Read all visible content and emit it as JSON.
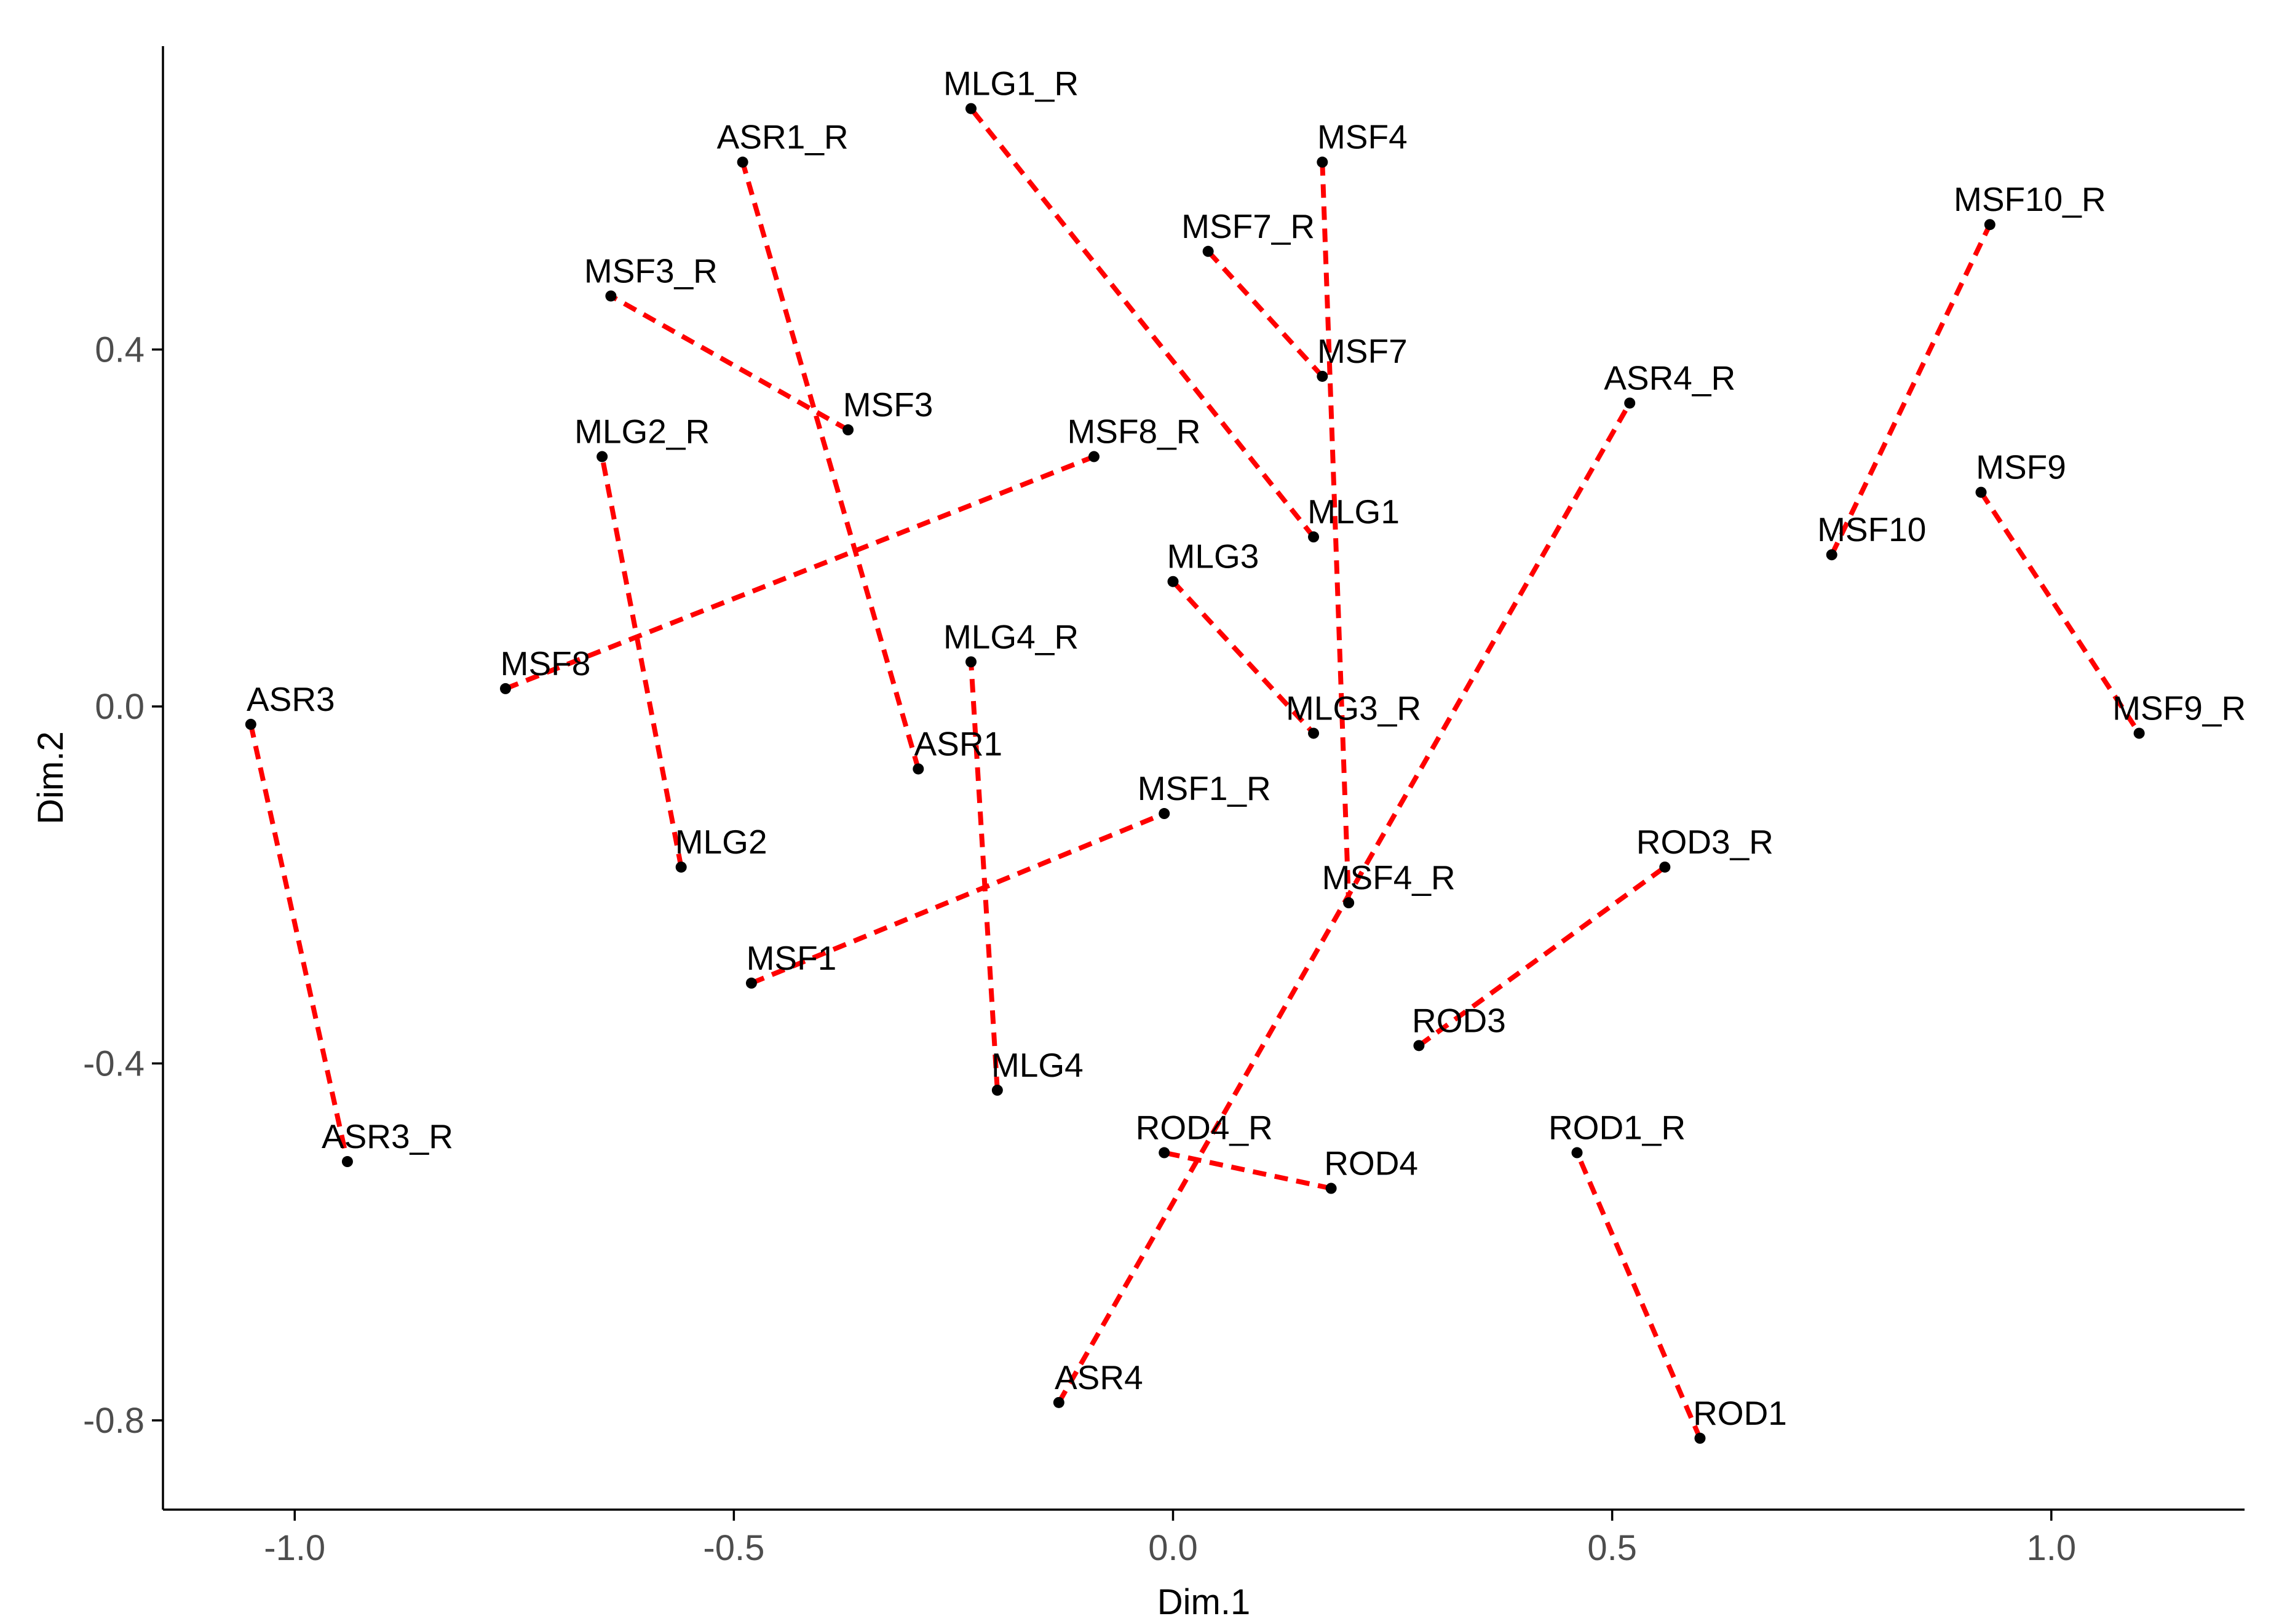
{
  "chart_data": {
    "type": "scatter",
    "xlabel": "Dim.1",
    "ylabel": "Dim.2",
    "xlim": [
      -1.15,
      1.22
    ],
    "ylim": [
      -0.9,
      0.74
    ],
    "x_ticks": [
      -1.0,
      -0.5,
      0.0,
      0.5,
      1.0
    ],
    "x_tick_labels": [
      "-1.0",
      "-0.5",
      "0.0",
      "0.5",
      "1.0"
    ],
    "y_ticks": [
      -0.8,
      -0.4,
      0.0,
      0.4
    ],
    "y_tick_labels": [
      "-0.8",
      "-0.4",
      "0.0",
      "0.4"
    ],
    "grid": false,
    "link_color": "#ff0000",
    "point_color": "#000000",
    "points": [
      {
        "label": "MLG1_R",
        "x": -0.23,
        "y": 0.67
      },
      {
        "label": "ASR1_R",
        "x": -0.49,
        "y": 0.61
      },
      {
        "label": "MSF4",
        "x": 0.17,
        "y": 0.61
      },
      {
        "label": "MSF7_R",
        "x": 0.04,
        "y": 0.51
      },
      {
        "label": "MSF10_R",
        "x": 0.93,
        "y": 0.54
      },
      {
        "label": "MSF3_R",
        "x": -0.64,
        "y": 0.46
      },
      {
        "label": "MSF7",
        "x": 0.17,
        "y": 0.37
      },
      {
        "label": "ASR4_R",
        "x": 0.52,
        "y": 0.34
      },
      {
        "label": "MSF3",
        "x": -0.37,
        "y": 0.31
      },
      {
        "label": "MLG2_R",
        "x": -0.65,
        "y": 0.28
      },
      {
        "label": "MSF8_R",
        "x": -0.09,
        "y": 0.28
      },
      {
        "label": "MLG1",
        "x": 0.16,
        "y": 0.19
      },
      {
        "label": "MSF9",
        "x": 0.92,
        "y": 0.24
      },
      {
        "label": "MSF10",
        "x": 0.75,
        "y": 0.17
      },
      {
        "label": "MLG3",
        "x": 0.0,
        "y": 0.14
      },
      {
        "label": "MLG4_R",
        "x": -0.23,
        "y": 0.05
      },
      {
        "label": "MSF8",
        "x": -0.76,
        "y": 0.02
      },
      {
        "label": "ASR3",
        "x": -1.05,
        "y": -0.02
      },
      {
        "label": "MLG3_R",
        "x": 0.16,
        "y": -0.03
      },
      {
        "label": "MSF9_R",
        "x": 1.1,
        "y": -0.03
      },
      {
        "label": "ASR1",
        "x": -0.29,
        "y": -0.07
      },
      {
        "label": "MSF1_R",
        "x": -0.01,
        "y": -0.12
      },
      {
        "label": "MLG2",
        "x": -0.56,
        "y": -0.18
      },
      {
        "label": "ROD3_R",
        "x": 0.56,
        "y": -0.18
      },
      {
        "label": "MSF4_R",
        "x": 0.2,
        "y": -0.22
      },
      {
        "label": "MSF1",
        "x": -0.48,
        "y": -0.31
      },
      {
        "label": "ROD3",
        "x": 0.28,
        "y": -0.38
      },
      {
        "label": "MLG4",
        "x": -0.2,
        "y": -0.43
      },
      {
        "label": "ROD4_R",
        "x": -0.01,
        "y": -0.5
      },
      {
        "label": "ROD1_R",
        "x": 0.46,
        "y": -0.5
      },
      {
        "label": "ASR3_R",
        "x": -0.94,
        "y": -0.51
      },
      {
        "label": "ROD4",
        "x": 0.18,
        "y": -0.54
      },
      {
        "label": "ASR4",
        "x": -0.13,
        "y": -0.78
      },
      {
        "label": "ROD1",
        "x": 0.6,
        "y": -0.82
      }
    ],
    "links": [
      [
        "ASR1",
        "ASR1_R"
      ],
      [
        "ASR3",
        "ASR3_R"
      ],
      [
        "ASR4",
        "ASR4_R"
      ],
      [
        "MLG1",
        "MLG1_R"
      ],
      [
        "MLG2",
        "MLG2_R"
      ],
      [
        "MLG3",
        "MLG3_R"
      ],
      [
        "MLG4",
        "MLG4_R"
      ],
      [
        "MSF1",
        "MSF1_R"
      ],
      [
        "MSF3",
        "MSF3_R"
      ],
      [
        "MSF4",
        "MSF4_R"
      ],
      [
        "MSF7",
        "MSF7_R"
      ],
      [
        "MSF8",
        "MSF8_R"
      ],
      [
        "MSF9",
        "MSF9_R"
      ],
      [
        "MSF10",
        "MSF10_R"
      ],
      [
        "ROD1",
        "ROD1_R"
      ],
      [
        "ROD3",
        "ROD3_R"
      ],
      [
        "ROD4",
        "ROD4_R"
      ]
    ]
  }
}
